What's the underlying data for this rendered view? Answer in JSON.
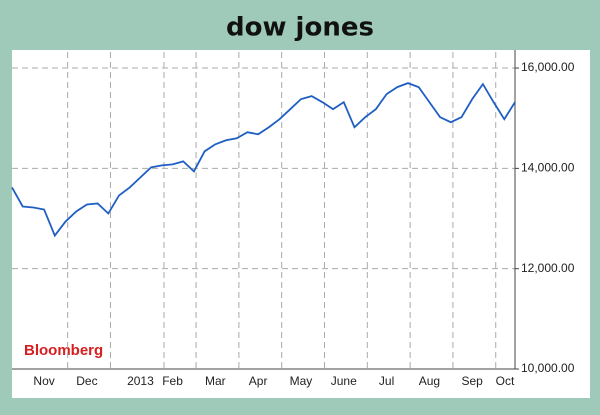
{
  "chart_data": {
    "type": "line",
    "title": "dow jones",
    "annotation": "Bloomberg",
    "categories": [
      null,
      null,
      null,
      "Nov",
      null,
      null,
      null,
      "Dec",
      null,
      null,
      null,
      null,
      "2013",
      null,
      null,
      "Feb",
      null,
      null,
      null,
      "Mar",
      null,
      null,
      null,
      "Apr",
      null,
      null,
      null,
      "May",
      null,
      null,
      null,
      "June",
      null,
      null,
      null,
      "Jul",
      null,
      null,
      null,
      "Aug",
      null,
      null,
      null,
      "Sep",
      null,
      null,
      null,
      "Oct"
    ],
    "series": [
      {
        "color": "#1f5fc4",
        "values": [
          13620,
          13240,
          13220,
          13180,
          12660,
          12940,
          13140,
          13280,
          13300,
          13100,
          13460,
          13620,
          13820,
          14020,
          14060,
          14080,
          14140,
          13940,
          14340,
          14480,
          14560,
          14600,
          14720,
          14680,
          14820,
          14980,
          15180,
          15380,
          15440,
          15320,
          15180,
          15320,
          14820,
          15020,
          15180,
          15480,
          15620,
          15700,
          15620,
          15320,
          15020,
          14920,
          15020,
          15380,
          15680,
          15320,
          14980,
          15320
        ]
      }
    ],
    "ylim": [
      10000,
      16320
    ],
    "yticks": [
      {
        "value": 10000,
        "label": "10,000.00"
      },
      {
        "value": 12000,
        "label": "12,000.00"
      },
      {
        "value": 14000,
        "label": "14,000.00"
      },
      {
        "value": 16000,
        "label": "16,000.00"
      }
    ],
    "grid": true
  }
}
